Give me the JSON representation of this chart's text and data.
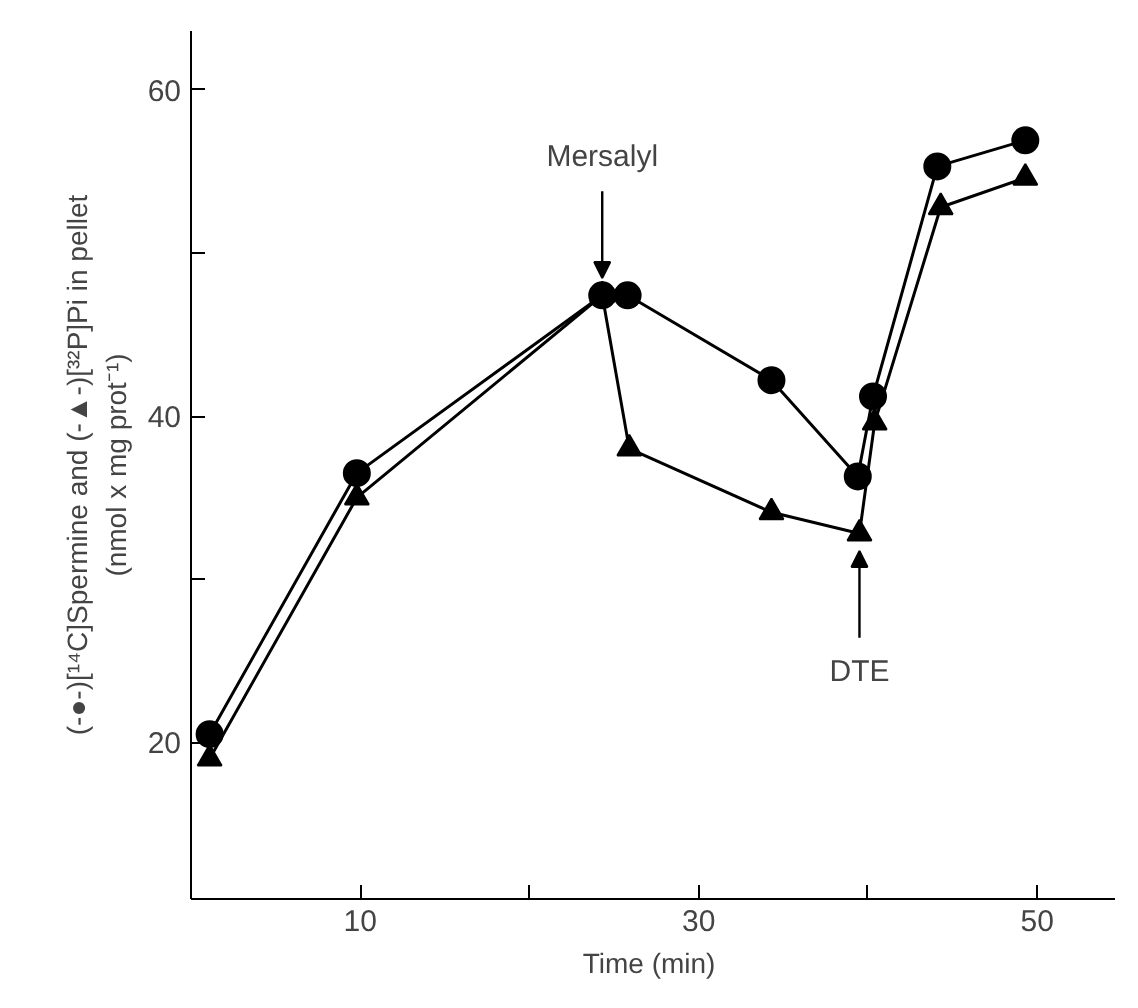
{
  "chart_data": {
    "type": "line",
    "xlabel": "Time  (min)",
    "ylabel": "(-●-)[¹⁴C]Spermine and (-▲-)[³²P]Pi in pellet\n(nmol x mg prot⁻¹)",
    "xlim": [
      0,
      54.6
    ],
    "ylim": [
      10.4,
      63.6
    ],
    "xticks": [
      {
        "value": 10,
        "label": "10"
      },
      {
        "value": 20,
        "label": null
      },
      {
        "value": 30,
        "label": "30"
      },
      {
        "value": 40,
        "label": null
      },
      {
        "value": 50,
        "label": "50"
      }
    ],
    "yticks": [
      {
        "value": 20,
        "label": "20"
      },
      {
        "value": 30,
        "label": null
      },
      {
        "value": 40,
        "label": "40"
      },
      {
        "value": 50,
        "label": null
      },
      {
        "value": 60,
        "label": "60"
      }
    ],
    "grid": false,
    "line_style": "solid",
    "series": [
      {
        "color": "#000000",
        "marker": "circle",
        "x": [
          1.1,
          9.8,
          24.3,
          25.8,
          34.3,
          39.4,
          40.3,
          44.1,
          49.3
        ],
        "values": [
          20.5,
          36.5,
          47.4,
          47.4,
          42.2,
          36.3,
          41.2,
          55.3,
          56.9
        ]
      },
      {
        "color": "#000000",
        "marker": "triangle",
        "x": [
          1.1,
          9.8,
          24.3,
          25.9,
          34.3,
          39.5,
          40.4,
          44.3,
          49.3
        ],
        "values": [
          19,
          35,
          47.4,
          38,
          34.1,
          32.8,
          39.6,
          52.8,
          54.6
        ]
      }
    ],
    "annotations": [
      {
        "text": "Mersalyl",
        "x": 24.3,
        "y": 47.4
      },
      {
        "text": "DTE",
        "x": 39.5,
        "y": 32.8
      }
    ]
  }
}
